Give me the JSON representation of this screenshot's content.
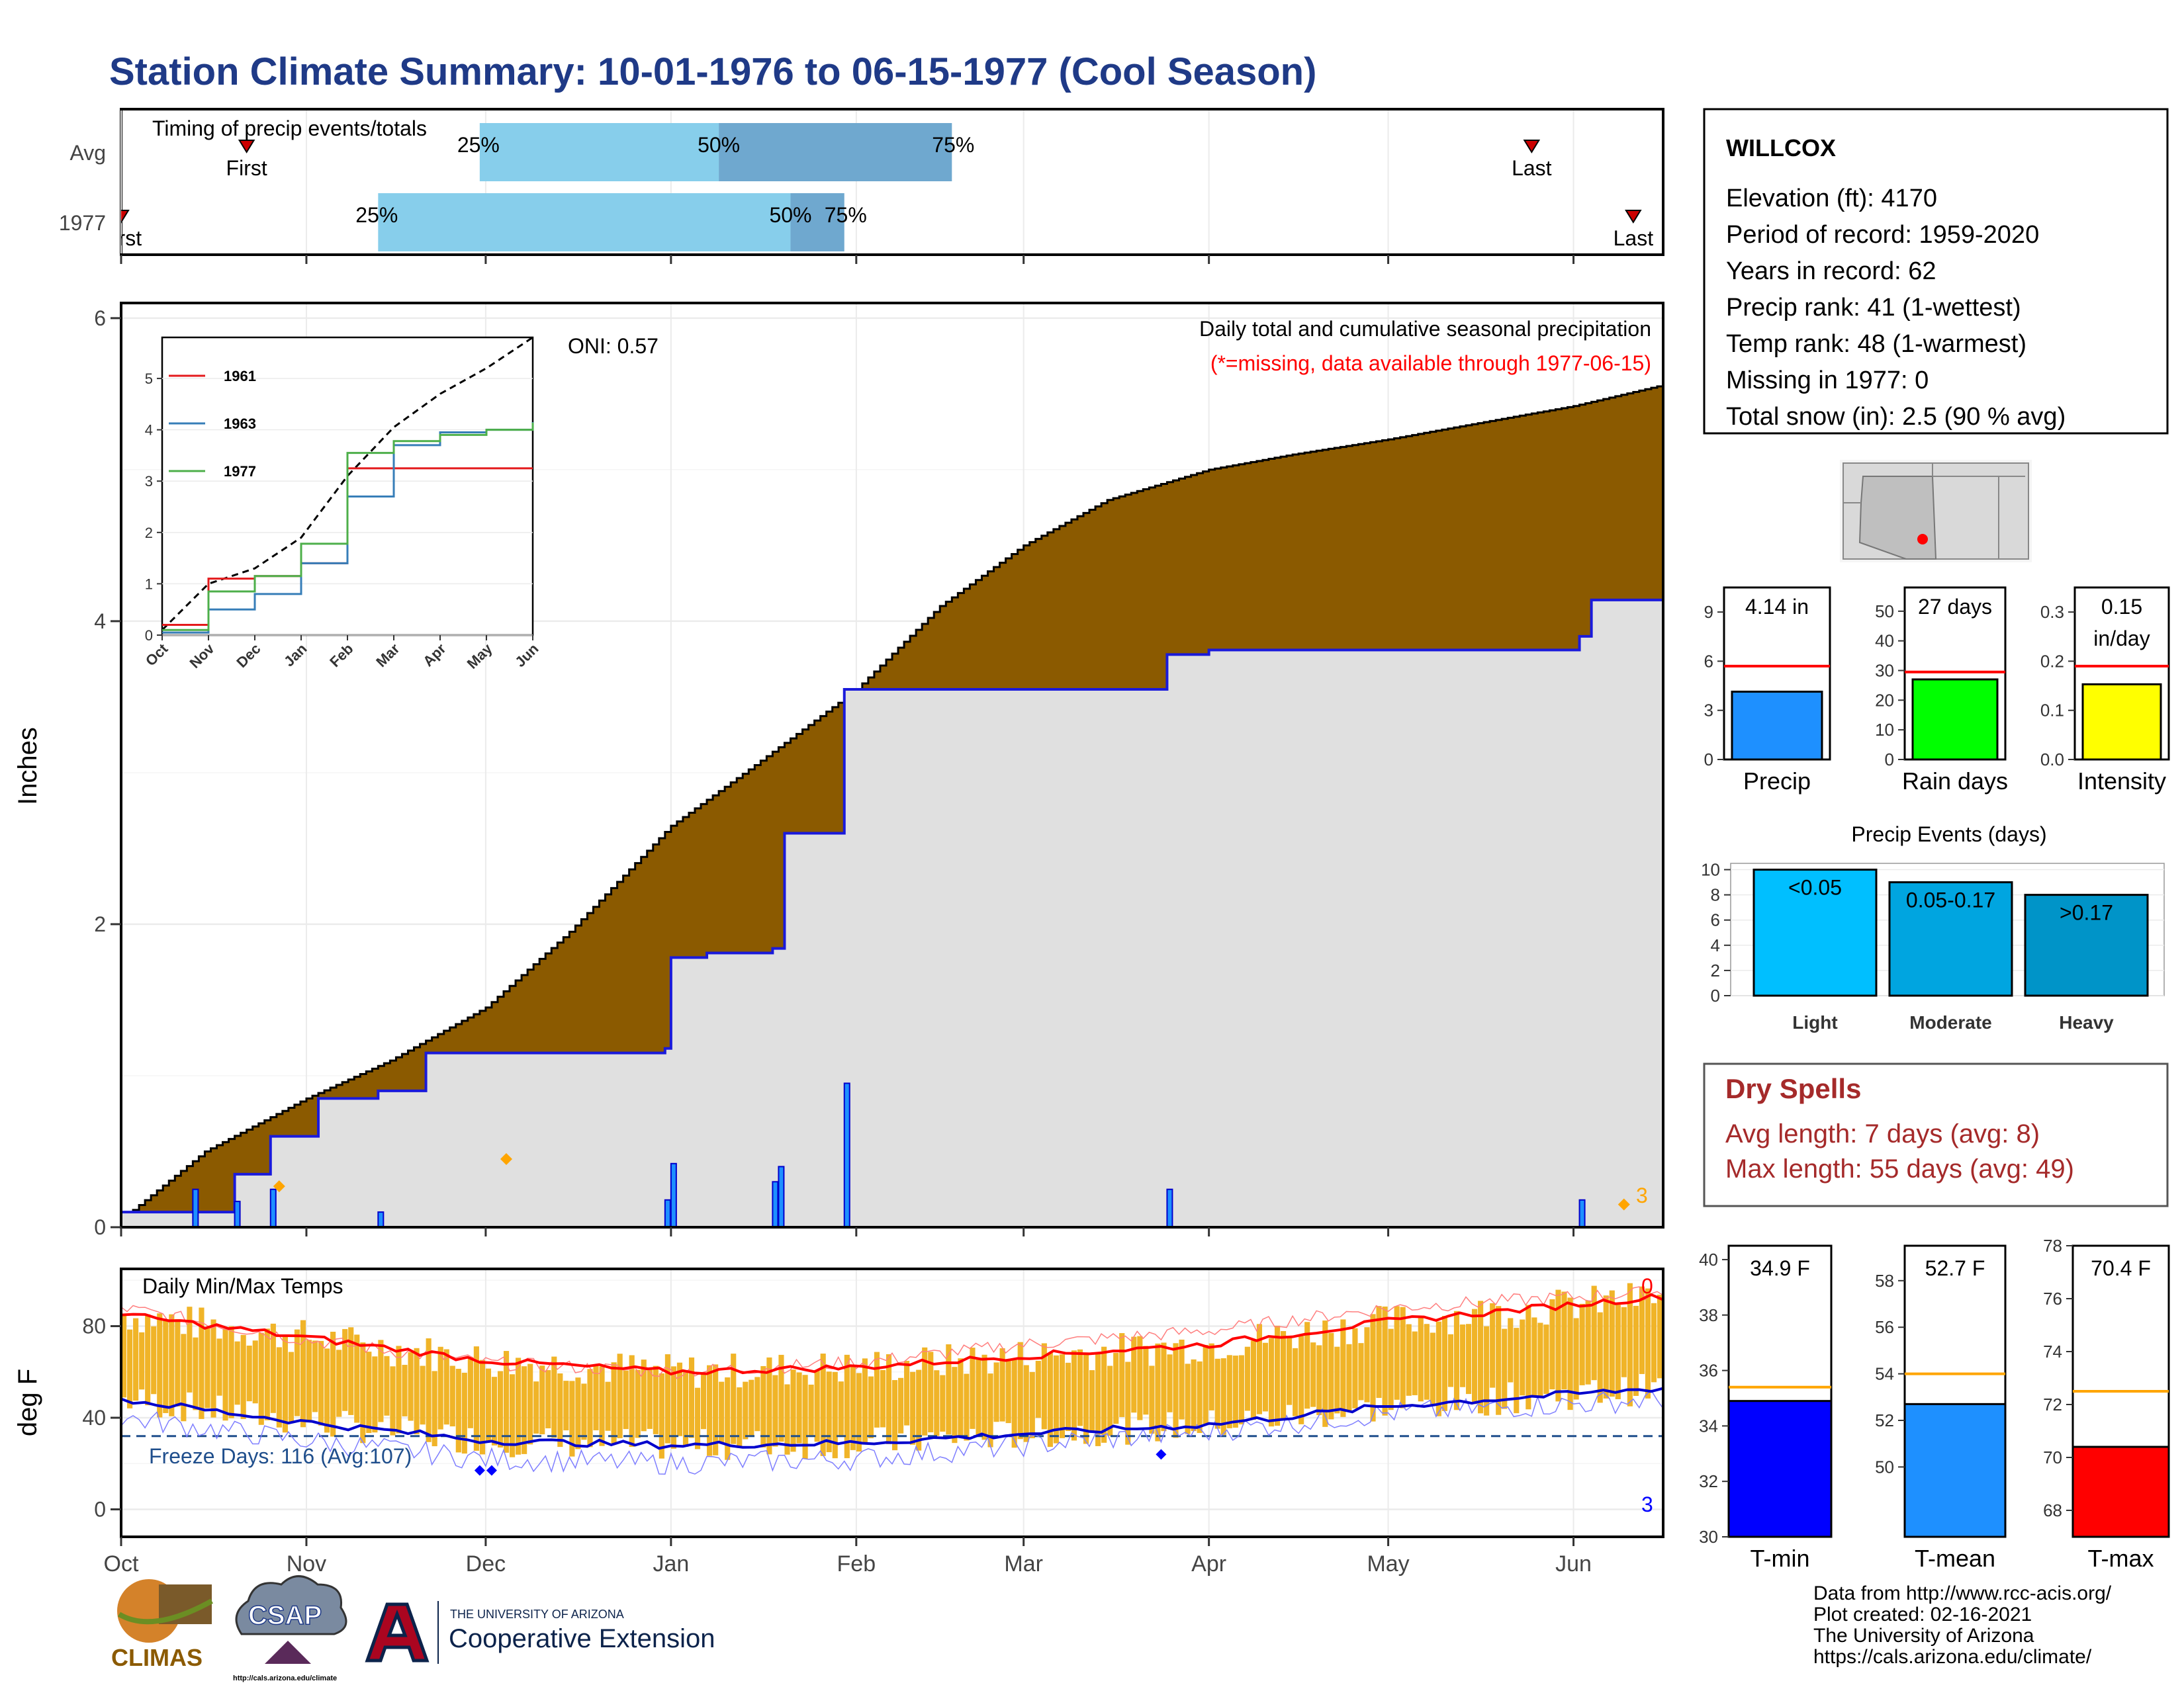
{
  "title": "Station Climate Summary: 10-01-1976 to 06-15-1977 (Cool Season)",
  "colors": {
    "title": "#1f3a87",
    "precip_area": "#8b5a00",
    "normal_area": "#e0e0e0",
    "cum_line": "#1a1adb",
    "temp_bar": "#f0b428",
    "red": "#ff0000",
    "blue": "#0000ff",
    "light_blue": "#87ceeb",
    "mid_blue": "#6fa8cf",
    "dark_red_text": "#a52a2a",
    "light_bar": "#00bfff",
    "mod_bar": "#00a5e0",
    "heavy_bar": "#0094c8",
    "green": "#00ff00",
    "yellow": "#ffff00",
    "orange": "#ffa500",
    "precip_bar": "#1e90ff"
  },
  "timing": {
    "title": "Timing of precip events/totals",
    "rows": [
      {
        "label": "Avg",
        "first_label": "First",
        "last_label": "Last",
        "first_day": 21,
        "last_day": 236,
        "q25_label": "25%",
        "q50_label": "50%",
        "q75_label": "75%",
        "q25": 60,
        "q50": 100,
        "q75": 139
      },
      {
        "label": "1977",
        "first_label": "First",
        "last_label": "Last",
        "first_day": 0,
        "last_day": 253,
        "q25_label": "25%",
        "q50_label": "50%",
        "q75_label": "75%",
        "q25": 43,
        "q50": 112,
        "q75": 121
      }
    ]
  },
  "precip_panel": {
    "ylabel": "Inches",
    "yticks": [
      "0",
      "2",
      "4",
      "6"
    ],
    "ylim": [
      0,
      6.1
    ],
    "note": "Daily total and cumulative seasonal precipitation",
    "missing_note": "(*=missing, data available through 1977-06-15)",
    "oni": "ONI: 0.57",
    "missing_count": "3"
  },
  "inset": {
    "yticks": [
      "0",
      "1",
      "2",
      "3",
      "4",
      "5"
    ],
    "xticks": [
      "Oct",
      "Nov",
      "Dec",
      "Jan",
      "Feb",
      "Mar",
      "Apr",
      "May",
      "Jun"
    ],
    "legend": [
      {
        "name": "1961",
        "color": "#e41a1c"
      },
      {
        "name": "1963",
        "color": "#377eb8"
      },
      {
        "name": "1977",
        "color": "#4daf4a"
      }
    ]
  },
  "temp_panel": {
    "ylabel": "deg F",
    "title": "Daily Min/Max Temps",
    "yticks": [
      "0",
      "40",
      "80"
    ],
    "ylim": [
      -12,
      105
    ],
    "freeze_label": "Freeze Days: 116 (Avg:107)",
    "top_count": "0",
    "bottom_count": "3"
  },
  "months": [
    "Oct",
    "Nov",
    "Dec",
    "Jan",
    "Feb",
    "Mar",
    "Apr",
    "May",
    "Jun"
  ],
  "station": {
    "name": "WILLCOX",
    "lines": [
      "Elevation (ft): 4170",
      "Period of record: 1959-2020",
      "Years in record: 62",
      "Precip rank: 41 (1-wettest)",
      "Temp rank: 48 (1-warmest)",
      "Missing in 1977: 0",
      "Total snow (in): 2.5 (90 % avg)"
    ]
  },
  "mini_bars": [
    {
      "label": "Precip",
      "value_label": "4.14 in",
      "value": 4.14,
      "avg": 5.7,
      "ylim": [
        0,
        10.5
      ],
      "ticks": [
        0,
        3,
        6,
        9
      ],
      "color": "#1e90ff"
    },
    {
      "label": "Rain days",
      "value_label": "27 days",
      "value": 27,
      "avg": 29.5,
      "ylim": [
        0,
        58
      ],
      "ticks": [
        0,
        10,
        20,
        30,
        40,
        50
      ],
      "color": "#00ff00"
    },
    {
      "label": "Intensity",
      "value_label": "0.15",
      "value_label2": "in/day",
      "value": 0.153,
      "avg": 0.19,
      "ylim": [
        0,
        0.35
      ],
      "ticks": [
        "0.0",
        "0.1",
        "0.2",
        "0.3"
      ],
      "color": "#ffff00"
    }
  ],
  "events": {
    "title": "Precip Events (days)",
    "ticks": [
      0,
      2,
      4,
      6,
      8,
      10
    ],
    "bars": [
      {
        "label": "Light",
        "value_label": "<0.05",
        "value": 10,
        "color": "#00bfff"
      },
      {
        "label": "Moderate",
        "value_label": "0.05-0.17",
        "value": 9,
        "color": "#00a5e0"
      },
      {
        "label": "Heavy",
        "value_label": ">0.17",
        "value": 8,
        "color": "#0094c8"
      }
    ]
  },
  "dry_spells": {
    "title": "Dry Spells",
    "avg": "Avg length: 7 days (avg: 8)",
    "max": "Max length: 55 days (avg: 49)"
  },
  "temp_bars": [
    {
      "label": "T-min",
      "value_label": "34.9 F",
      "value": 34.9,
      "avg": 35.4,
      "ylim": [
        30,
        40.5
      ],
      "ticks": [
        30,
        32,
        34,
        36,
        38,
        40
      ],
      "color": "#0000ff"
    },
    {
      "label": "T-mean",
      "value_label": "52.7 F",
      "value": 52.7,
      "avg": 54.0,
      "ylim": [
        47,
        59.5
      ],
      "ticks": [
        50,
        52,
        54,
        56,
        58
      ],
      "color": "#1e90ff"
    },
    {
      "label": "T-max",
      "value_label": "70.4 F",
      "value": 70.4,
      "avg": 72.5,
      "ylim": [
        67,
        78
      ],
      "ticks": [
        68,
        70,
        72,
        74,
        76,
        78
      ],
      "color": "#ff0000"
    }
  ],
  "footer": {
    "source": "Data from http://www.rcc-acis.org/",
    "created": "Plot created: 02-16-2021",
    "org": "The University of Arizona",
    "url": "https://cals.arizona.edu/climate/"
  },
  "logos": {
    "climas": "CLIMAS",
    "csap": "CSAP",
    "csap_url": "http://cals.arizona.edu/climate",
    "ua_small": "THE UNIVERSITY OF ARIZONA",
    "ua_big": "Cooperative Extension"
  },
  "chart_data": [
    {
      "type": "area",
      "title": "Daily total and cumulative seasonal precipitation",
      "ylabel": "Inches",
      "ylim": [
        0,
        6
      ],
      "x_start": "1976-10-01",
      "x_end": "1977-06-15",
      "series": [
        {
          "name": "",
          "x": [
            "1976-10-01",
            "1976-10-15",
            "1976-11-01",
            "1976-11-15",
            "1976-12-01",
            "1976-12-15",
            "1977-01-01",
            "1977-01-15",
            "1977-02-01",
            "1977-02-15",
            "1977-03-01",
            "1977-03-15",
            "1977-04-01",
            "1977-04-15",
            "1977-05-01",
            "1977-05-15",
            "1977-06-01",
            "1977-06-15"
          ],
          "values": [
            0.05,
            0.5,
            0.85,
            1.1,
            1.45,
            1.95,
            2.65,
            3.05,
            3.55,
            4.1,
            4.5,
            4.8,
            5.0,
            5.1,
            5.2,
            5.3,
            5.42,
            5.55
          ]
        },
        {
          "name": "",
          "x": [
            "1976-10-01",
            "1976-10-13",
            "1976-10-20",
            "1976-10-26",
            "1976-11-03",
            "1976-11-13",
            "1976-11-21",
            "1976-12-31",
            "1977-01-01",
            "1977-01-07",
            "1977-01-18",
            "1977-01-20",
            "1977-01-30",
            "1977-03-25",
            "1977-04-01",
            "1977-06-02",
            "1977-06-04",
            "1977-06-15"
          ],
          "values": [
            0.1,
            0.1,
            0.35,
            0.6,
            0.85,
            0.9,
            1.15,
            1.18,
            1.78,
            1.81,
            1.84,
            2.6,
            3.55,
            3.78,
            3.81,
            3.9,
            4.14,
            4.14
          ]
        }
      ],
      "daily_bars": [
        {
          "x": "1976-10-13",
          "value": 0.25
        },
        {
          "x": "1976-10-20",
          "value": 0.17
        },
        {
          "x": "1976-10-26",
          "value": 0.25
        },
        {
          "x": "1976-11-13",
          "value": 0.1
        },
        {
          "x": "1976-12-31",
          "value": 0.18
        },
        {
          "x": "1977-01-01",
          "value": 0.42
        },
        {
          "x": "1977-01-18",
          "value": 0.3
        },
        {
          "x": "1977-01-19",
          "value": 0.4
        },
        {
          "x": "1977-01-30",
          "value": 0.95
        },
        {
          "x": "1977-03-25",
          "value": 0.25
        },
        {
          "x": "1977-06-02",
          "value": 0.18
        }
      ]
    },
    {
      "type": "line",
      "title": "",
      "ylim": [
        0,
        5.8
      ],
      "x": [
        "Oct",
        "Nov",
        "Dec",
        "Jan",
        "Feb",
        "Mar",
        "Apr",
        "May",
        "Jun"
      ],
      "series": [
        {
          "name": "",
          "values": [
            0.1,
            1.0,
            1.3,
            1.9,
            3.1,
            4.05,
            4.7,
            5.2,
            5.8
          ]
        },
        {
          "name": "1961",
          "values": [
            0.2,
            1.1,
            1.15,
            1.4,
            3.25,
            3.25,
            3.25,
            3.25,
            3.25
          ]
        },
        {
          "name": "1963",
          "values": [
            0.05,
            0.5,
            0.8,
            1.4,
            2.7,
            3.7,
            3.95,
            4.0,
            4.15
          ]
        },
        {
          "name": "1977",
          "values": [
            0.1,
            0.85,
            1.15,
            1.78,
            3.55,
            3.78,
            3.9,
            4.0,
            4.14
          ]
        }
      ]
    },
    {
      "type": "line",
      "title": "Daily Min/Max Temps",
      "ylabel": "deg F",
      "ylim": [
        -12,
        105
      ],
      "x": [
        "Oct",
        "Nov",
        "Dec",
        "Jan",
        "Feb",
        "Mar",
        "Apr",
        "May",
        "Jun"
      ],
      "series": [
        {
          "name": "",
          "values": [
            85,
            75,
            65,
            60,
            62,
            67,
            72,
            82,
            93
          ]
        },
        {
          "name": "",
          "values": [
            48,
            38,
            30,
            28,
            29,
            33,
            37,
            45,
            53
          ]
        },
        {
          "name": "",
          "values": [
            88,
            74,
            64,
            60,
            64,
            72,
            78,
            88,
            95
          ]
        },
        {
          "name": "",
          "values": [
            40,
            30,
            22,
            20,
            22,
            28,
            34,
            42,
            48
          ]
        }
      ],
      "freeze_line": 32
    }
  ]
}
